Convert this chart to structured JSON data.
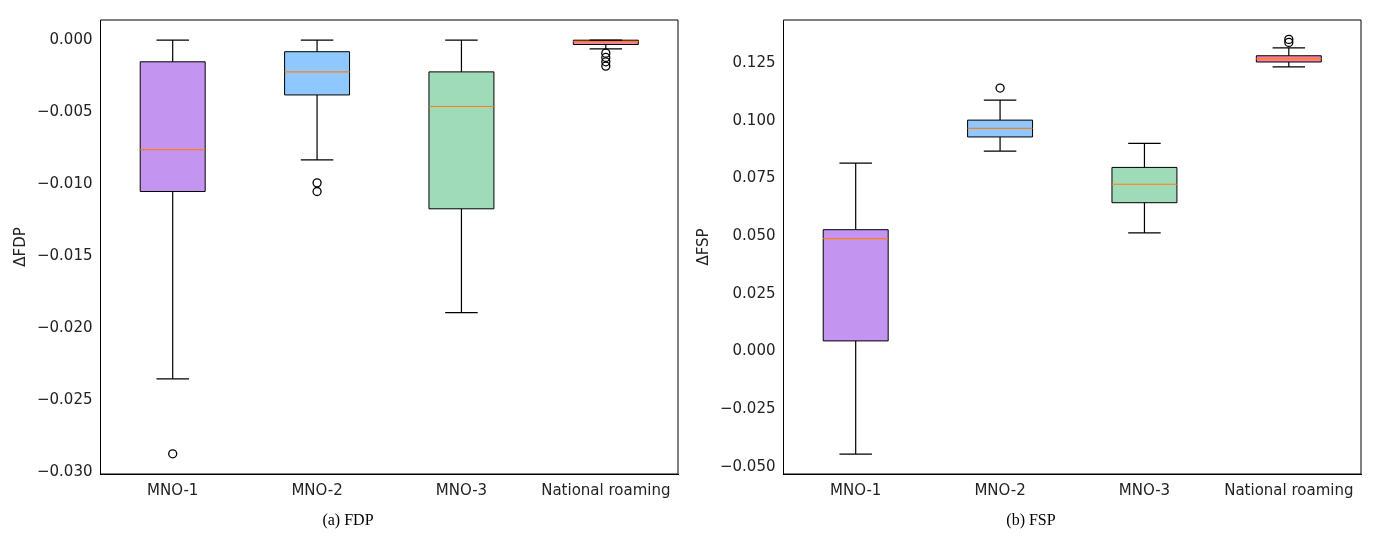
{
  "chart_data": [
    {
      "type": "box",
      "ylabel": "ΔFDP",
      "categories": [
        "MNO-1",
        "MNO-2",
        "MNO-3",
        "National roaming"
      ],
      "colors": [
        "#c495f0",
        "#8fc7ff",
        "#9fdbb8",
        "#f77fa6"
      ],
      "boxes": [
        {
          "low": -0.0235,
          "q1": -0.0105,
          "median": -0.0076,
          "q3": -0.0015,
          "high": 0,
          "outliers": [
            -0.0287
          ]
        },
        {
          "low": -0.0083,
          "q1": -0.0038,
          "median": -0.0022,
          "q3": -0.0008,
          "high": 0,
          "outliers": [
            -0.0099,
            -0.0105
          ]
        },
        {
          "low": -0.0189,
          "q1": -0.0117,
          "median": -0.0046,
          "q3": -0.0022,
          "high": 0
        },
        {
          "low": -0.0006,
          "q1": -0.0003,
          "median": -0.0001,
          "q3": 0,
          "high": 0,
          "outliers": [
            -0.0009,
            -0.0012,
            -0.0015,
            -0.0018
          ]
        }
      ],
      "ylim": [
        -0.0301,
        0.0014
      ],
      "yticks": [
        {
          "value": -0.03,
          "label": "−0.030"
        },
        {
          "value": -0.025,
          "label": "−0.025"
        },
        {
          "value": -0.02,
          "label": "−0.020"
        },
        {
          "value": -0.015,
          "label": "−0.015"
        },
        {
          "value": -0.01,
          "label": "−0.010"
        },
        {
          "value": -0.005,
          "label": "−0.005"
        },
        {
          "value": 0,
          "label": "0.000"
        }
      ],
      "grid": false,
      "legend": false,
      "annotations": [
        "(a) FDP"
      ]
    },
    {
      "type": "box",
      "ylabel": "ΔFSP",
      "categories": [
        "MNO-1",
        "MNO-2",
        "MNO-3",
        "National roaming"
      ],
      "colors": [
        "#c495f0",
        "#8fc7ff",
        "#9fdbb8",
        "#f77fa6"
      ],
      "boxes": [
        {
          "low": -0.0445,
          "q1": 0.0046,
          "median": 0.0489,
          "q3": 0.0528,
          "high": 0.0817
        },
        {
          "low": 0.0869,
          "q1": 0.093,
          "median": 0.0967,
          "q3": 0.1003,
          "high": 0.109,
          "outliers": [
            0.1142
          ]
        },
        {
          "low": 0.0514,
          "q1": 0.0645,
          "median": 0.0725,
          "q3": 0.0798,
          "high": 0.0902
        },
        {
          "low": 0.1234,
          "q1": 0.1255,
          "median": 0.127,
          "q3": 0.1282,
          "high": 0.1316,
          "outliers": [
            0.134,
            0.1353
          ]
        }
      ],
      "ylim": [
        -0.0531,
        0.1437
      ],
      "yticks": [
        {
          "value": -0.05,
          "label": "−0.050"
        },
        {
          "value": -0.025,
          "label": "−0.025"
        },
        {
          "value": 0,
          "label": "0.000"
        },
        {
          "value": 0.025,
          "label": "0.025"
        },
        {
          "value": 0.05,
          "label": "0.050"
        },
        {
          "value": 0.075,
          "label": "0.075"
        },
        {
          "value": 0.1,
          "label": "0.100"
        },
        {
          "value": 0.125,
          "label": "0.125"
        }
      ],
      "grid": false,
      "legend": false,
      "annotations": [
        "(b) FSP"
      ]
    }
  ]
}
